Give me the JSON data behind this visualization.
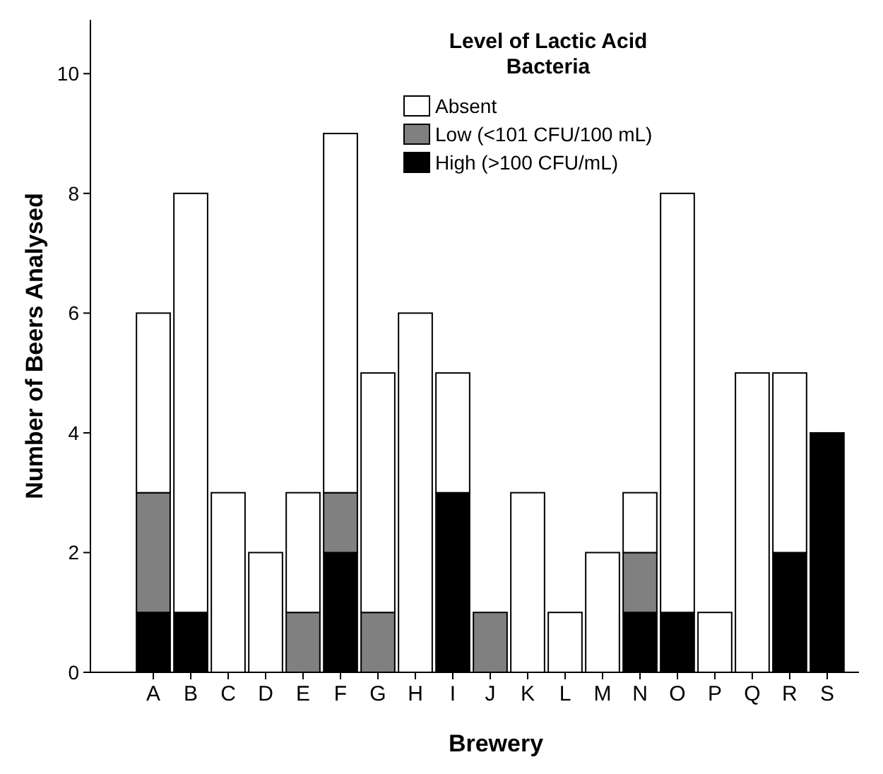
{
  "chart_data": {
    "type": "bar",
    "stacked": true,
    "xlabel": "Brewery",
    "ylabel": "Number of Beers Analysed",
    "legend_title": "Level of Lactic Acid Bacteria",
    "legend": "top right",
    "categories": [
      "A",
      "B",
      "C",
      "D",
      "E",
      "F",
      "G",
      "H",
      "I",
      "J",
      "K",
      "L",
      "M",
      "N",
      "O",
      "P",
      "Q",
      "R",
      "S"
    ],
    "series": [
      {
        "name": "High (>100 CFU/mL)",
        "color": "#000000",
        "values": [
          1,
          1,
          0,
          0,
          0,
          2,
          0,
          0,
          3,
          0,
          0,
          0,
          0,
          1,
          1,
          0,
          0,
          2,
          4
        ]
      },
      {
        "name": "Low (<101 CFU/100 mL)",
        "color": "#808080",
        "values": [
          2,
          0,
          0,
          0,
          1,
          1,
          1,
          0,
          0,
          1,
          0,
          0,
          0,
          1,
          0,
          0,
          0,
          0,
          0
        ]
      },
      {
        "name": "Absent",
        "color": "#ffffff",
        "values": [
          3,
          7,
          3,
          2,
          2,
          6,
          4,
          6,
          2,
          0,
          3,
          1,
          2,
          1,
          7,
          1,
          5,
          3,
          0
        ]
      }
    ],
    "ylim": [
      0,
      10.9
    ],
    "yticks": [
      0,
      2,
      4,
      6,
      8,
      10
    ],
    "grid": false
  }
}
